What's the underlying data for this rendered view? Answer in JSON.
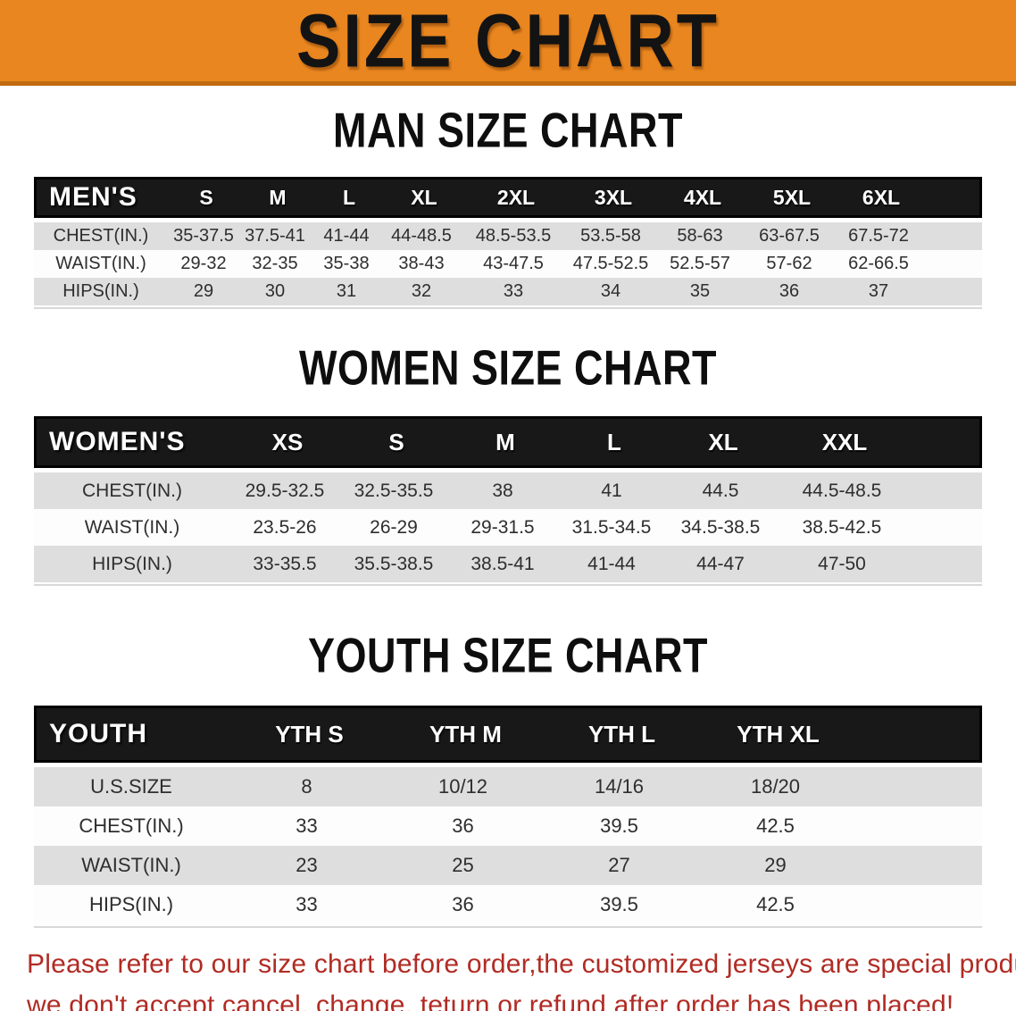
{
  "banner": {
    "title": "SIZE CHART",
    "bg_color": "#E9861F",
    "border_color": "#C06A10"
  },
  "men": {
    "heading": "MAN SIZE CHART",
    "table": {
      "header": [
        "MEN'S",
        "S",
        "M",
        "L",
        "XL",
        "2XL",
        "3XL",
        "4XL",
        "5XL",
        "6XL"
      ],
      "rows": [
        {
          "label": "CHEST(IN.)",
          "values": [
            "35-37.5",
            "37.5-41",
            "41-44",
            "44-48.5",
            "48.5-53.5",
            "53.5-58",
            "58-63",
            "63-67.5",
            "67.5-72"
          ]
        },
        {
          "label": "WAIST(IN.)",
          "values": [
            "29-32",
            "32-35",
            "35-38",
            "38-43",
            "43-47.5",
            "47.5-52.5",
            "52.5-57",
            "57-62",
            "62-66.5"
          ]
        },
        {
          "label": "HIPS(IN.)",
          "values": [
            "29",
            "30",
            "31",
            "32",
            "33",
            "34",
            "35",
            "36",
            "37"
          ]
        }
      ]
    }
  },
  "women": {
    "heading": "WOMEN SIZE CHART",
    "table": {
      "header": [
        "WOMEN'S",
        "XS",
        "S",
        "M",
        "L",
        "XL",
        "XXL"
      ],
      "rows": [
        {
          "label": "CHEST(IN.)",
          "values": [
            "29.5-32.5",
            "32.5-35.5",
            "38",
            "41",
            "44.5",
            "44.5-48.5"
          ]
        },
        {
          "label": "WAIST(IN.)",
          "values": [
            "23.5-26",
            "26-29",
            "29-31.5",
            "31.5-34.5",
            "34.5-38.5",
            "38.5-42.5"
          ]
        },
        {
          "label": "HIPS(IN.)",
          "values": [
            "33-35.5",
            "35.5-38.5",
            "38.5-41",
            "41-44",
            "44-47",
            "47-50"
          ]
        }
      ]
    }
  },
  "youth": {
    "heading": "YOUTH SIZE CHART",
    "table": {
      "header": [
        "YOUTH",
        "YTH S",
        "YTH M",
        "YTH L",
        "YTH XL"
      ],
      "rows": [
        {
          "label": "U.S.SIZE",
          "values": [
            "8",
            "10/12",
            "14/16",
            "18/20"
          ]
        },
        {
          "label": "CHEST(IN.)",
          "values": [
            "33",
            "36",
            "39.5",
            "42.5"
          ]
        },
        {
          "label": "WAIST(IN.)",
          "values": [
            "23",
            "25",
            "27",
            "29"
          ]
        },
        {
          "label": "HIPS(IN.)",
          "values": [
            "33",
            "36",
            "39.5",
            "42.5"
          ]
        }
      ]
    }
  },
  "disclaimer": {
    "line1": "Please refer to our size chart before order,the customized jerseys are special products,",
    "line2": "we don't accept cancel, change, teturn or refund after order has been placed!",
    "color": "#B12B24"
  },
  "colors": {
    "header_bar_bg": "#181818",
    "shaded_row_bg": "#DEDEDE",
    "plain_row_bg": "#FDFDFD"
  }
}
